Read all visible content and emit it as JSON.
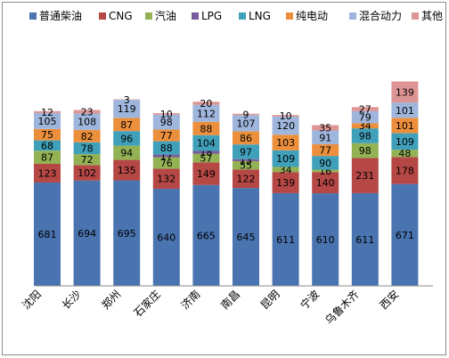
{
  "chart_data": {
    "type": "bar",
    "stacked": true,
    "title": "",
    "xlabel": "",
    "ylabel": "",
    "legend_position": "top",
    "grid": false,
    "categories": [
      "沈阳",
      "长沙",
      "郑州",
      "石家庄",
      "济南",
      "南昌",
      "昆明",
      "宁波",
      "乌鲁木齐",
      "西安"
    ],
    "series": [
      {
        "name": "普通柴油",
        "color": "#4a74b0",
        "values": [
          681,
          694,
          695,
          640,
          665,
          645,
          611,
          610,
          611,
          671
        ]
      },
      {
        "name": "CNG",
        "color": "#b54745",
        "values": [
          123,
          102,
          135,
          132,
          149,
          122,
          139,
          140,
          231,
          178
        ]
      },
      {
        "name": "汽油",
        "color": "#93b254",
        "values": [
          87,
          72,
          94,
          76,
          57,
          55,
          34,
          16,
          98,
          48
        ]
      },
      {
        "name": "LPG",
        "color": "#7a5a9e",
        "values": [
          0,
          0,
          0,
          17,
          18,
          13,
          0,
          0,
          0,
          0
        ]
      },
      {
        "name": "LNG",
        "color": "#40a0ba",
        "values": [
          68,
          78,
          96,
          88,
          104,
          97,
          109,
          90,
          98,
          109
        ]
      },
      {
        "name": "纯电动",
        "color": "#ec8f3c",
        "values": [
          75,
          82,
          87,
          77,
          88,
          86,
          103,
          77,
          34,
          101
        ]
      },
      {
        "name": "混合动力",
        "color": "#9fb6dc",
        "values": [
          105,
          108,
          119,
          98,
          112,
          107,
          120,
          91,
          79,
          101
        ]
      },
      {
        "name": "其他",
        "color": "#dd9594",
        "values": [
          12,
          23,
          3,
          10,
          20,
          9,
          10,
          35,
          27,
          139
        ]
      }
    ]
  }
}
